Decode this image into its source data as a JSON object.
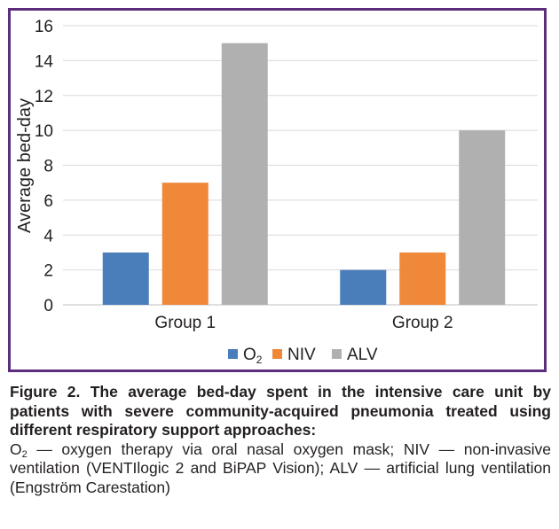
{
  "chart_data": {
    "type": "bar",
    "categories": [
      "Group 1",
      "Group 2"
    ],
    "series": [
      {
        "name": "O2",
        "values": [
          3,
          2
        ],
        "color": "#4a7ebb"
      },
      {
        "name": "NIV",
        "values": [
          7,
          3
        ],
        "color": "#f0883a"
      },
      {
        "name": "ALV",
        "values": [
          15,
          10
        ],
        "color": "#b0b0b0"
      }
    ],
    "xlabel": "",
    "ylabel": "Average bed-day",
    "ylim": [
      0,
      16
    ],
    "yticks": [
      0,
      2,
      4,
      6,
      8,
      10,
      12,
      14,
      16
    ],
    "grid": true,
    "legend": "bottom",
    "border_color": "#5b2d7c"
  },
  "caption": {
    "title": "Figure 2. The average bed-day spent in the intensive care unit by patients with severe community-acquired pneumonia treated using different respiratory support approaches:",
    "o2_main": "O",
    "o2_sub": "2",
    "text": " — oxygen therapy via oral nasal oxygen mask; NIV — non-invasive ventilation (VENTIlogic 2 and BiPAP Vision); ALV — artificial lung ventilation (Engström Carestation)"
  }
}
